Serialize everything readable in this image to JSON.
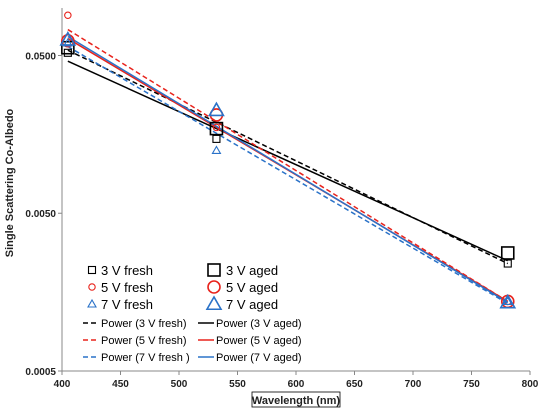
{
  "chart_data": {
    "type": "scatter",
    "xlabel": "Wavelength (nm)",
    "ylabel": "Single Scattering Co-Albedo",
    "xlim": [
      400,
      800
    ],
    "ylim": [
      0.0005,
      0.1
    ],
    "y_scale": "log",
    "x_ticks": [
      400,
      450,
      500,
      550,
      600,
      650,
      700,
      750,
      800
    ],
    "x_tick_labels": [
      "400",
      "450",
      "500",
      "550",
      "600",
      "650",
      "700",
      "750",
      "800"
    ],
    "y_ticks": [
      0.0005,
      0.005,
      0.05
    ],
    "y_tick_labels": [
      "0.0005",
      "0.0050",
      "0.0500"
    ],
    "grid": false,
    "legend_position": "bottom-left",
    "series": [
      {
        "name": "3 V fresh",
        "color": "#000000",
        "marker": "square",
        "size": "small",
        "x": [
          405,
          532,
          781
        ],
        "y": [
          0.052,
          0.0148,
          0.0024
        ]
      },
      {
        "name": "3 V aged",
        "color": "#000000",
        "marker": "square",
        "size": "large",
        "x": [
          405,
          532,
          781
        ],
        "y": [
          0.056,
          0.0172,
          0.0028
        ]
      },
      {
        "name": "5 V fresh",
        "color": "#e8231c",
        "marker": "circle",
        "size": "small",
        "x": [
          405,
          532,
          781
        ],
        "y": [
          0.09,
          0.0175,
          0.00138
        ]
      },
      {
        "name": "5 V aged",
        "color": "#e8231c",
        "marker": "circle",
        "size": "large",
        "x": [
          405,
          532,
          781
        ],
        "y": [
          0.062,
          0.021,
          0.00138
        ]
      },
      {
        "name": "7 V fresh",
        "color": "#2a72c8",
        "marker": "triangle",
        "size": "small",
        "x": [
          405,
          532,
          781
        ],
        "y": [
          0.06,
          0.0125,
          0.00138
        ]
      },
      {
        "name": "7 V aged",
        "color": "#2a72c8",
        "marker": "triangle",
        "size": "large",
        "x": [
          405,
          532,
          781
        ],
        "y": [
          0.063,
          0.0225,
          0.00136
        ]
      },
      {
        "name": "Power (3 V fresh)",
        "color": "#000000",
        "line": "dashed",
        "x": [
          405,
          781
        ],
        "y": [
          0.054,
          0.0024
        ]
      },
      {
        "name": "Power (3 V aged)",
        "color": "#000000",
        "line": "solid",
        "x": [
          405,
          781
        ],
        "y": [
          0.046,
          0.0025
        ]
      },
      {
        "name": "Power (5 V fresh)",
        "color": "#e8231c",
        "line": "dashed",
        "x": [
          405,
          781
        ],
        "y": [
          0.073,
          0.00138
        ]
      },
      {
        "name": "Power (5 V aged)",
        "color": "#e8231c",
        "line": "solid",
        "x": [
          405,
          781
        ],
        "y": [
          0.064,
          0.00138
        ]
      },
      {
        "name": "Power (7 V fresh )",
        "color": "#2a72c8",
        "line": "dashed",
        "x": [
          405,
          781
        ],
        "y": [
          0.057,
          0.00134
        ]
      },
      {
        "name": "Power (7 V aged)",
        "color": "#2a72c8",
        "line": "solid",
        "x": [
          405,
          781
        ],
        "y": [
          0.066,
          0.00136
        ]
      }
    ],
    "legend": {
      "marker_entries": [
        {
          "label": "3 V fresh",
          "series": 0
        },
        {
          "label": "3 V aged",
          "series": 1
        },
        {
          "label": "5 V fresh",
          "series": 2
        },
        {
          "label": "5 V aged",
          "series": 3
        },
        {
          "label": "7 V fresh",
          "series": 4
        },
        {
          "label": "7 V aged",
          "series": 5
        }
      ],
      "line_entries": [
        {
          "label": "Power (3 V fresh)",
          "series": 6
        },
        {
          "label": "Power (3 V aged)",
          "series": 7
        },
        {
          "label": "Power (5 V fresh)",
          "series": 8
        },
        {
          "label": "Power (5 V aged)",
          "series": 9
        },
        {
          "label": "Power (7 V fresh )",
          "series": 10
        },
        {
          "label": "Power (7 V aged)",
          "series": 11
        }
      ]
    }
  }
}
